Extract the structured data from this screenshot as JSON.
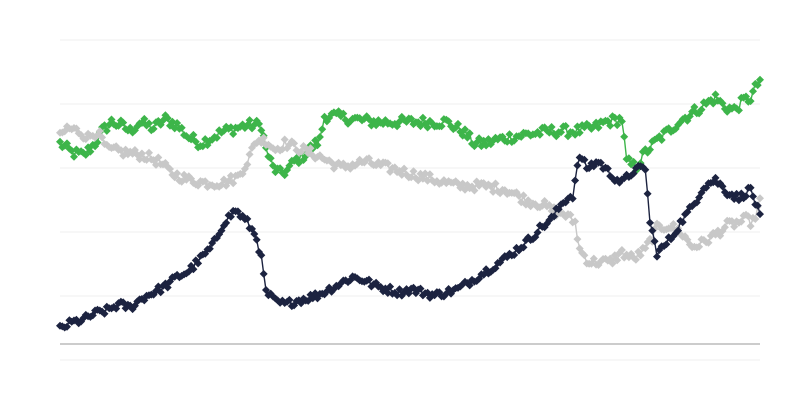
{
  "chart_data": {
    "type": "line",
    "title": "",
    "xlabel": "",
    "ylabel": "",
    "x_count": 300,
    "ylim": [
      0,
      100
    ],
    "grid": true,
    "legend": "none",
    "series": [
      {
        "color": "#3db54a",
        "marker": "diamond",
        "anchors": [
          [
            0,
            66
          ],
          [
            5,
            63
          ],
          [
            10,
            62
          ],
          [
            15,
            66
          ],
          [
            18,
            70
          ],
          [
            22,
            73
          ],
          [
            26,
            72
          ],
          [
            30,
            70
          ],
          [
            34,
            73
          ],
          [
            40,
            71
          ],
          [
            45,
            74
          ],
          [
            50,
            72
          ],
          [
            55,
            68
          ],
          [
            60,
            66
          ],
          [
            65,
            68
          ],
          [
            70,
            70
          ],
          [
            75,
            71
          ],
          [
            80,
            72
          ],
          [
            84,
            72
          ],
          [
            86,
            72
          ],
          [
            88,
            64
          ],
          [
            91,
            58
          ],
          [
            94,
            56
          ],
          [
            97,
            57
          ],
          [
            100,
            60
          ],
          [
            104,
            62
          ],
          [
            108,
            65
          ],
          [
            111,
            67
          ],
          [
            113,
            75
          ],
          [
            117,
            75
          ],
          [
            125,
            74
          ],
          [
            135,
            73
          ],
          [
            145,
            73
          ],
          [
            155,
            73
          ],
          [
            165,
            73
          ],
          [
            172,
            70
          ],
          [
            177,
            66
          ],
          [
            182,
            66
          ],
          [
            186,
            67
          ],
          [
            192,
            68
          ],
          [
            200,
            69
          ],
          [
            210,
            70
          ],
          [
            220,
            70
          ],
          [
            228,
            71
          ],
          [
            233,
            73
          ],
          [
            240,
            74
          ],
          [
            242,
            60
          ],
          [
            246,
            58
          ],
          [
            250,
            63
          ],
          [
            255,
            67
          ],
          [
            260,
            70
          ],
          [
            264,
            73
          ],
          [
            268,
            75
          ],
          [
            272,
            77
          ],
          [
            276,
            79
          ],
          [
            280,
            81
          ],
          [
            284,
            78
          ],
          [
            288,
            77
          ],
          [
            292,
            80
          ],
          [
            295,
            81
          ],
          [
            299,
            87
          ]
        ],
        "noise": 1.8
      },
      {
        "color": "#c8c8c8",
        "marker": "diamond",
        "anchors": [
          [
            0,
            68
          ],
          [
            3,
            71
          ],
          [
            8,
            70
          ],
          [
            12,
            68
          ],
          [
            16,
            70
          ],
          [
            20,
            64
          ],
          [
            28,
            63
          ],
          [
            36,
            62
          ],
          [
            42,
            60
          ],
          [
            48,
            56
          ],
          [
            55,
            54
          ],
          [
            62,
            53
          ],
          [
            70,
            53
          ],
          [
            76,
            55
          ],
          [
            80,
            60
          ],
          [
            84,
            67
          ],
          [
            88,
            67
          ],
          [
            92,
            64
          ],
          [
            96,
            66
          ],
          [
            100,
            65
          ],
          [
            110,
            62
          ],
          [
            120,
            58
          ],
          [
            130,
            60
          ],
          [
            140,
            58
          ],
          [
            150,
            56
          ],
          [
            160,
            54
          ],
          [
            170,
            52
          ],
          [
            180,
            52
          ],
          [
            190,
            51
          ],
          [
            200,
            47
          ],
          [
            206,
            46
          ],
          [
            210,
            44
          ],
          [
            215,
            43
          ],
          [
            220,
            40
          ],
          [
            222,
            31
          ],
          [
            226,
            27
          ],
          [
            230,
            27
          ],
          [
            235,
            27
          ],
          [
            240,
            30
          ],
          [
            245,
            28
          ],
          [
            250,
            31
          ],
          [
            255,
            38
          ],
          [
            260,
            39
          ],
          [
            265,
            37
          ],
          [
            270,
            32
          ],
          [
            274,
            33
          ],
          [
            280,
            36
          ],
          [
            285,
            39
          ],
          [
            290,
            40
          ],
          [
            293,
            41
          ],
          [
            296,
            40
          ],
          [
            299,
            47
          ]
        ],
        "noise": 1.6
      },
      {
        "color": "#1c2340",
        "marker": "diamond",
        "anchors": [
          [
            0,
            5
          ],
          [
            5,
            7
          ],
          [
            10,
            8
          ],
          [
            15,
            10
          ],
          [
            20,
            11
          ],
          [
            25,
            13
          ],
          [
            30,
            12
          ],
          [
            35,
            15
          ],
          [
            40,
            17
          ],
          [
            45,
            19
          ],
          [
            50,
            22
          ],
          [
            55,
            24
          ],
          [
            60,
            28
          ],
          [
            65,
            32
          ],
          [
            70,
            40
          ],
          [
            75,
            44
          ],
          [
            80,
            40
          ],
          [
            84,
            35
          ],
          [
            86,
            28
          ],
          [
            88,
            17
          ],
          [
            92,
            14
          ],
          [
            96,
            13
          ],
          [
            100,
            14
          ],
          [
            105,
            15
          ],
          [
            110,
            16
          ],
          [
            115,
            18
          ],
          [
            120,
            20
          ],
          [
            125,
            22
          ],
          [
            130,
            21
          ],
          [
            135,
            19
          ],
          [
            140,
            18
          ],
          [
            145,
            17
          ],
          [
            150,
            18
          ],
          [
            155,
            17
          ],
          [
            160,
            16
          ],
          [
            170,
            18
          ],
          [
            180,
            23
          ],
          [
            190,
            28
          ],
          [
            200,
            34
          ],
          [
            205,
            38
          ],
          [
            210,
            41
          ],
          [
            215,
            47
          ],
          [
            219,
            49
          ],
          [
            222,
            62
          ],
          [
            225,
            58
          ],
          [
            230,
            60
          ],
          [
            235,
            56
          ],
          [
            240,
            53
          ],
          [
            245,
            57
          ],
          [
            250,
            58
          ],
          [
            252,
            40
          ],
          [
            255,
            30
          ],
          [
            258,
            32
          ],
          [
            262,
            36
          ],
          [
            266,
            41
          ],
          [
            270,
            45
          ],
          [
            275,
            52
          ],
          [
            280,
            54
          ],
          [
            285,
            50
          ],
          [
            290,
            48
          ],
          [
            295,
            51
          ],
          [
            299,
            42
          ]
        ],
        "noise": 1.3
      }
    ]
  }
}
